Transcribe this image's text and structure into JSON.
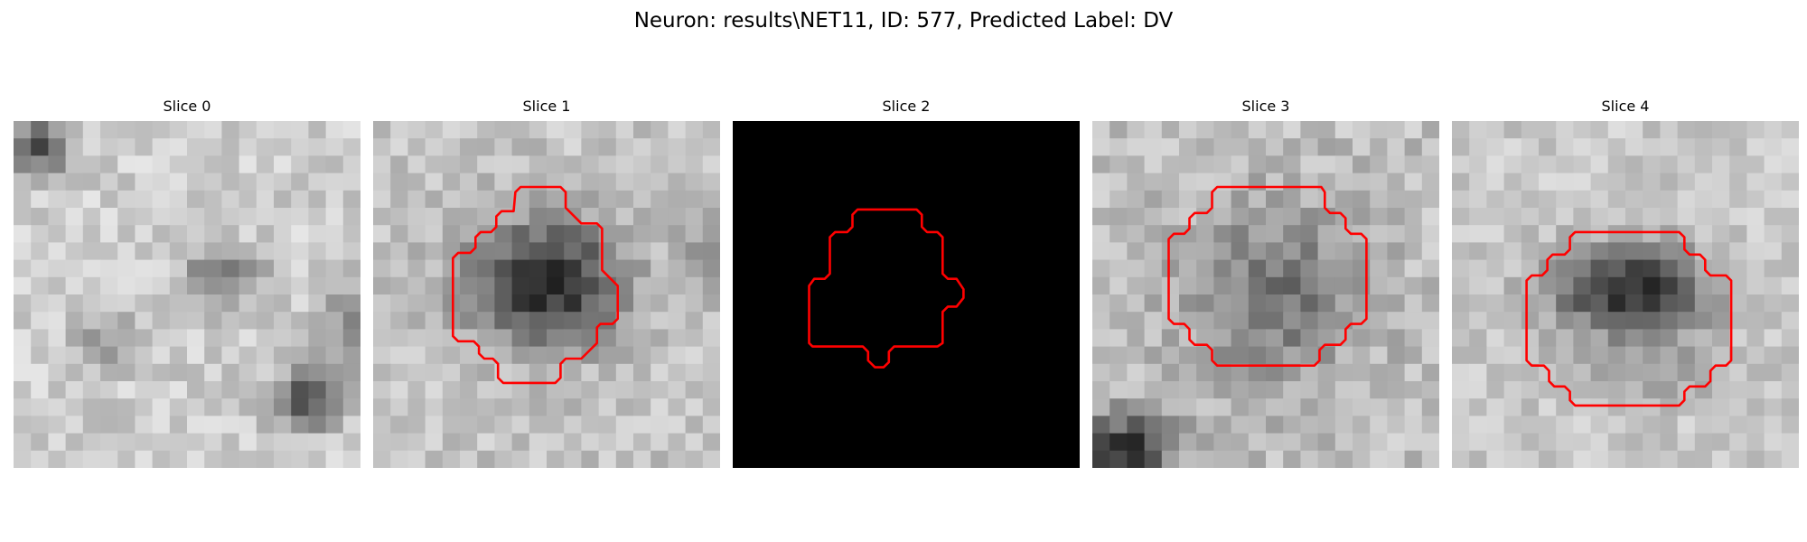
{
  "figure": {
    "title": "Neuron: results\\NET11, ID: 577, Predicted Label: DV"
  },
  "slices": [
    {
      "label": "Slice 0",
      "has_contour": false,
      "image": "grayscale intensity patch, no outline",
      "outline_color": ""
    },
    {
      "label": "Slice 1",
      "has_contour": true,
      "image": "grayscale intensity patch with dark round cell body",
      "outline_color": "#ff0000"
    },
    {
      "label": "Slice 2",
      "has_contour": true,
      "image": "black mask with outline only",
      "outline_color": "#ff0000"
    },
    {
      "label": "Slice 3",
      "has_contour": true,
      "image": "grayscale intensity patch with faint round cell body",
      "outline_color": "#ff0000"
    },
    {
      "label": "Slice 4",
      "has_contour": true,
      "image": "grayscale intensity patch with dark round cell body",
      "outline_color": "#ff0000"
    }
  ],
  "colors": {
    "contour": "#ff0000",
    "background": "#ffffff"
  }
}
